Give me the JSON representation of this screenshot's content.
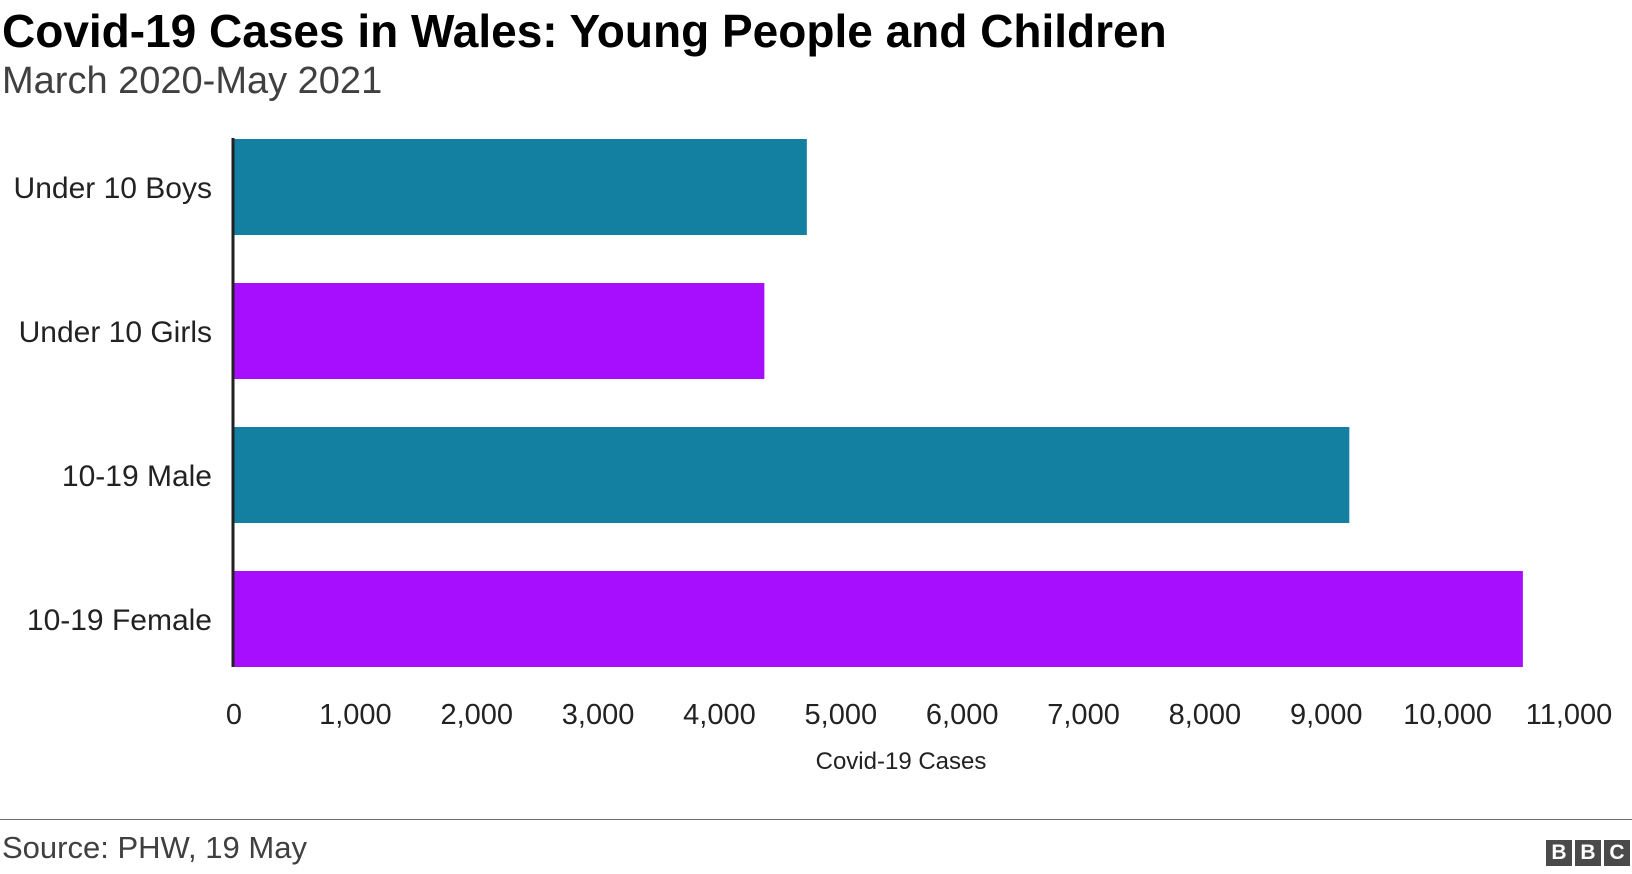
{
  "header": {
    "title": "Covid-19 Cases in Wales: Young People and Children",
    "subtitle": "March 2020-May 2021"
  },
  "footer": {
    "source": "Source: PHW, 19 May",
    "logo": [
      "B",
      "B",
      "C"
    ]
  },
  "chart_data": {
    "type": "bar",
    "orientation": "horizontal",
    "title": "Covid-19 Cases in Wales: Young People and Children",
    "subtitle": "March 2020-May 2021",
    "categories": [
      "Under 10 Boys",
      "Under 10 Girls",
      "10-19 Male",
      "10-19 Female"
    ],
    "values": [
      4720,
      4370,
      9190,
      10620
    ],
    "colors": [
      "#1380a1",
      "#a70efe",
      "#1380a1",
      "#a70efe"
    ],
    "xlabel": "Covid-19 Cases",
    "ylabel": "",
    "xlim": [
      0,
      11000
    ],
    "xticks": [
      0,
      1000,
      2000,
      3000,
      4000,
      5000,
      6000,
      7000,
      8000,
      9000,
      10000,
      11000
    ],
    "xtick_labels": [
      "0",
      "1,000",
      "2,000",
      "3,000",
      "4,000",
      "5,000",
      "6,000",
      "7,000",
      "8,000",
      "9,000",
      "10,000",
      "11,000"
    ],
    "grid": false,
    "legend": "none"
  }
}
